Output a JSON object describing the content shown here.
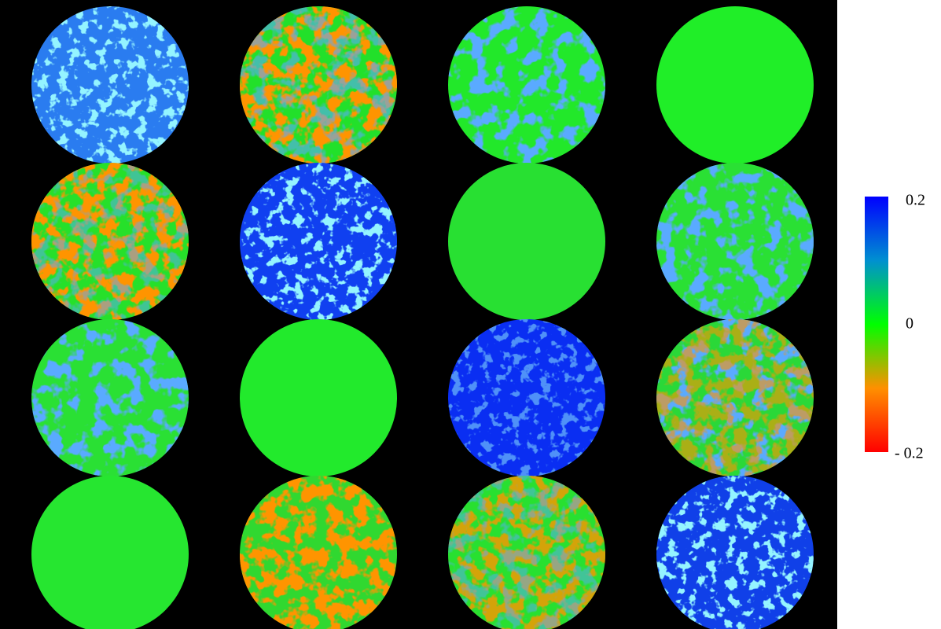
{
  "colorbar": {
    "labels": [
      "0.2",
      "0",
      "- 0.2"
    ]
  }
}
